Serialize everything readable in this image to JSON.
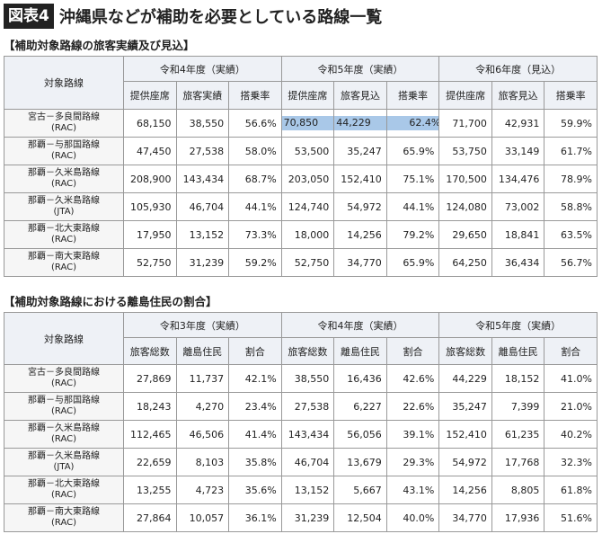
{
  "header": {
    "badge": "図表4",
    "title": "沖縄県などが補助を必要としている路線一覧"
  },
  "sections": [
    {
      "heading": "【補助対象路線の旅客実績及び見込】",
      "table": {
        "corner": "対象路線",
        "groups": [
          "令和4年度（実績）",
          "令和5年度（実績）",
          "令和6年度（見込）"
        ],
        "columns": [
          [
            "提供座席",
            "旅客実績",
            "搭乗率"
          ],
          [
            "提供座席",
            "旅客見込",
            "搭乗率"
          ],
          [
            "提供座席",
            "旅客見込",
            "搭乗率"
          ]
        ],
        "rows": [
          {
            "route": [
              "宮古－多良間路線",
              "(RAC)"
            ],
            "cells": [
              "68,150",
              "38,550",
              "56.6%",
              "70,850",
              "44,229",
              "62.4%",
              "71,700",
              "42,931",
              "59.9%"
            ]
          },
          {
            "route": [
              "那覇－与那国路線",
              "(RAC)"
            ],
            "cells": [
              "47,450",
              "27,538",
              "58.0%",
              "53,500",
              "35,247",
              "65.9%",
              "53,750",
              "33,149",
              "61.7%"
            ]
          },
          {
            "route": [
              "那覇－久米島路線",
              "(RAC)"
            ],
            "cells": [
              "208,900",
              "143,434",
              "68.7%",
              "203,050",
              "152,410",
              "75.1%",
              "170,500",
              "134,476",
              "78.9%"
            ]
          },
          {
            "route": [
              "那覇－久米島路線",
              "(JTA)"
            ],
            "cells": [
              "105,930",
              "46,704",
              "44.1%",
              "124,740",
              "54,972",
              "44.1%",
              "124,080",
              "73,002",
              "58.8%"
            ]
          },
          {
            "route": [
              "那覇－北大東路線",
              "(RAC)"
            ],
            "cells": [
              "17,950",
              "13,152",
              "73.3%",
              "18,000",
              "14,256",
              "79.2%",
              "29,650",
              "18,841",
              "63.5%"
            ]
          },
          {
            "route": [
              "那覇－南大東路線",
              "(RAC)"
            ],
            "cells": [
              "52,750",
              "31,239",
              "59.2%",
              "52,750",
              "34,770",
              "65.9%",
              "64,250",
              "36,434",
              "56.7%"
            ]
          }
        ]
      }
    },
    {
      "heading": "【補助対象路線における離島住民の割合】",
      "table": {
        "corner": "対象路線",
        "groups": [
          "令和3年度（実績）",
          "令和4年度（実績）",
          "令和5年度（実績）"
        ],
        "columns": [
          [
            "旅客総数",
            "離島住民",
            "割合"
          ],
          [
            "旅客総数",
            "離島住民",
            "割合"
          ],
          [
            "旅客総数",
            "離島住民",
            "割合"
          ]
        ],
        "rows": [
          {
            "route": [
              "宮古－多良間路線",
              "(RAC)"
            ],
            "cells": [
              "27,869",
              "11,737",
              "42.1%",
              "38,550",
              "16,436",
              "42.6%",
              "44,229",
              "18,152",
              "41.0%"
            ]
          },
          {
            "route": [
              "那覇－与那国路線",
              "(RAC)"
            ],
            "cells": [
              "18,243",
              "4,270",
              "23.4%",
              "27,538",
              "6,227",
              "22.6%",
              "35,247",
              "7,399",
              "21.0%"
            ]
          },
          {
            "route": [
              "那覇－久米島路線",
              "(RAC)"
            ],
            "cells": [
              "112,465",
              "46,506",
              "41.4%",
              "143,434",
              "56,056",
              "39.1%",
              "152,410",
              "61,235",
              "40.2%"
            ]
          },
          {
            "route": [
              "那覇－久米島路線",
              "(JTA)"
            ],
            "cells": [
              "22,659",
              "8,103",
              "35.8%",
              "46,704",
              "13,679",
              "29.3%",
              "54,972",
              "17,768",
              "32.3%"
            ]
          },
          {
            "route": [
              "那覇－北大東路線",
              "(RAC)"
            ],
            "cells": [
              "13,255",
              "4,723",
              "35.6%",
              "13,152",
              "5,667",
              "43.1%",
              "14,256",
              "8,805",
              "61.8%"
            ]
          },
          {
            "route": [
              "那覇－南大東路線",
              "(RAC)"
            ],
            "cells": [
              "27,864",
              "10,057",
              "36.1%",
              "31,239",
              "12,504",
              "40.0%",
              "34,770",
              "17,936",
              "51.6%"
            ]
          }
        ]
      }
    }
  ]
}
